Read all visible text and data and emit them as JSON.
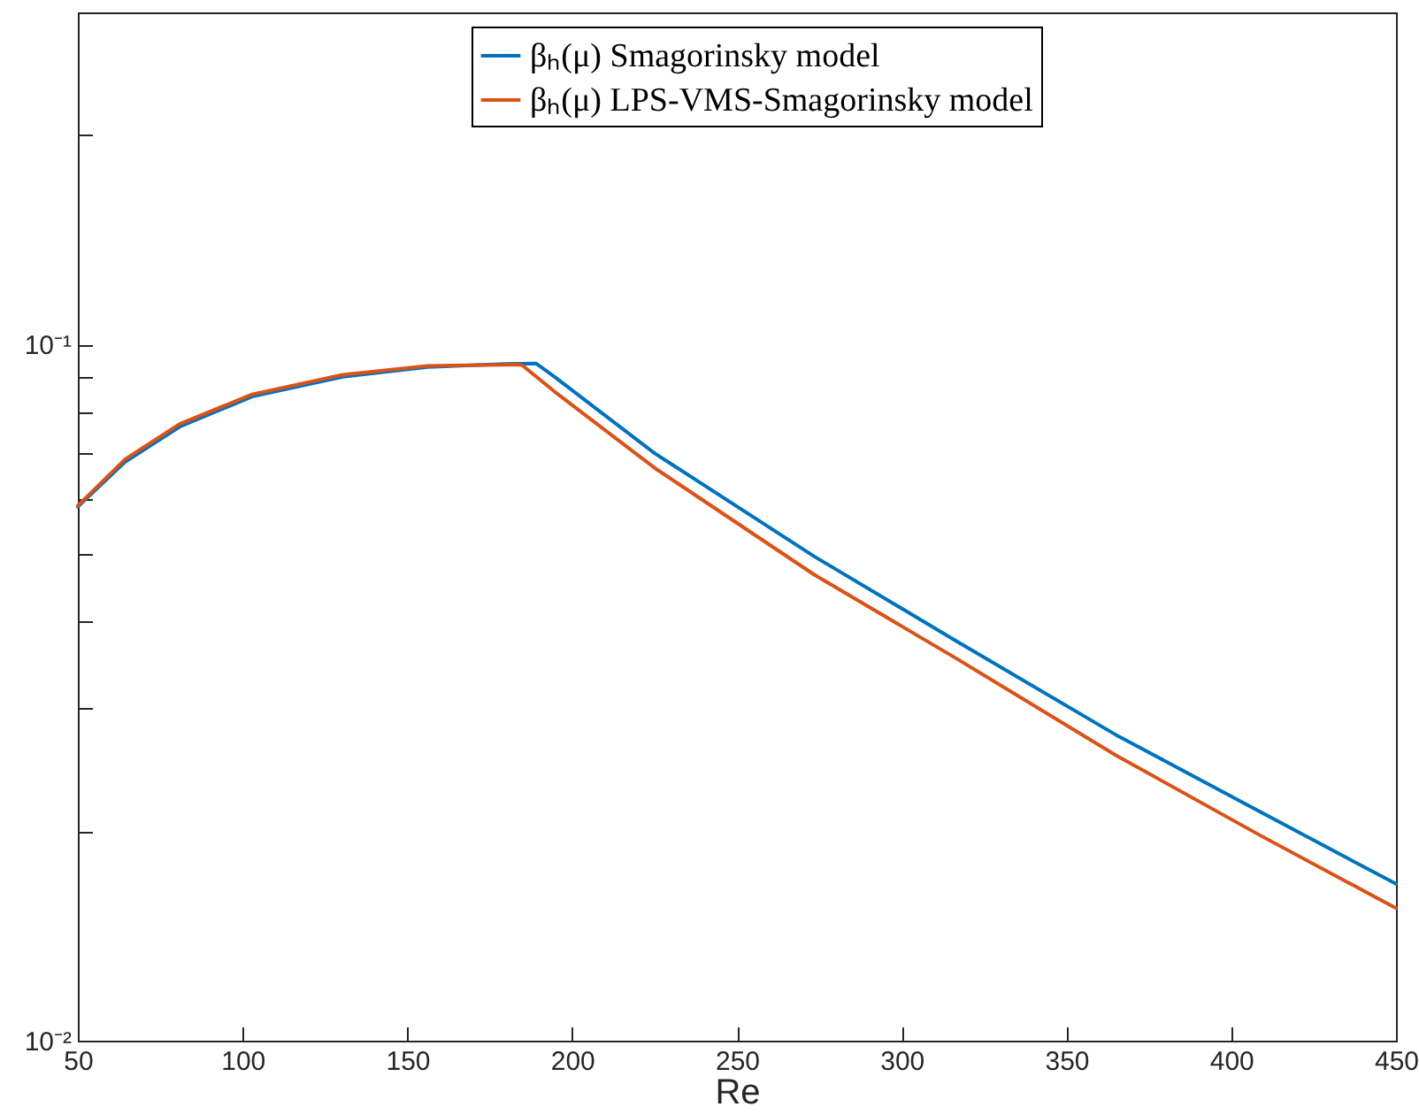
{
  "chart_data": {
    "type": "line",
    "xlabel": "Re",
    "xlim": [
      50,
      450
    ],
    "xticks": [
      50,
      100,
      150,
      200,
      250,
      300,
      350,
      400,
      450
    ],
    "ylim": [
      0.01,
      0.3
    ],
    "log": "y",
    "yticks": [
      {
        "value": 0.01,
        "label": "10⁻²"
      },
      {
        "value": 0.02,
        "label": null
      },
      {
        "value": 0.03,
        "label": null
      },
      {
        "value": 0.04,
        "label": null
      },
      {
        "value": 0.05,
        "label": null
      },
      {
        "value": 0.06,
        "label": null
      },
      {
        "value": 0.07,
        "label": null
      },
      {
        "value": 0.08,
        "label": null
      },
      {
        "value": 0.09,
        "label": null
      },
      {
        "value": 0.1,
        "label": "10⁻¹"
      },
      {
        "value": 0.2,
        "label": null
      }
    ],
    "grid": false,
    "legend": "top",
    "marker": "none",
    "line_style": "solid",
    "series": [
      {
        "name": "βₕ(μ) Smagorinsky model",
        "color": "#0072bd",
        "x": [
          50,
          64.3,
          80.9,
          102.9,
          130.4,
          156.1,
          180,
          189.1,
          194.5,
          225,
          273.5,
          316.6,
          365,
          408.1,
          450
        ],
        "values": [
          0.0585,
          0.0678,
          0.0762,
          0.0842,
          0.0899,
          0.0928,
          0.0938,
          0.0939,
          0.09,
          0.0698,
          0.0496,
          0.0375,
          0.0275,
          0.0214,
          0.0168
        ]
      },
      {
        "name": "βₕ(μ) LPS-VMS-Smagorinsky model",
        "color": "#d95319",
        "x": [
          50,
          64.3,
          80.9,
          102.9,
          130.4,
          156.1,
          184.6,
          194.5,
          225,
          273.5,
          316.6,
          365,
          408.1,
          450
        ],
        "values": [
          0.0587,
          0.0684,
          0.0769,
          0.0848,
          0.0905,
          0.0932,
          0.0936,
          0.0857,
          0.0665,
          0.0467,
          0.0354,
          0.0257,
          0.0198,
          0.0155
        ]
      }
    ]
  }
}
